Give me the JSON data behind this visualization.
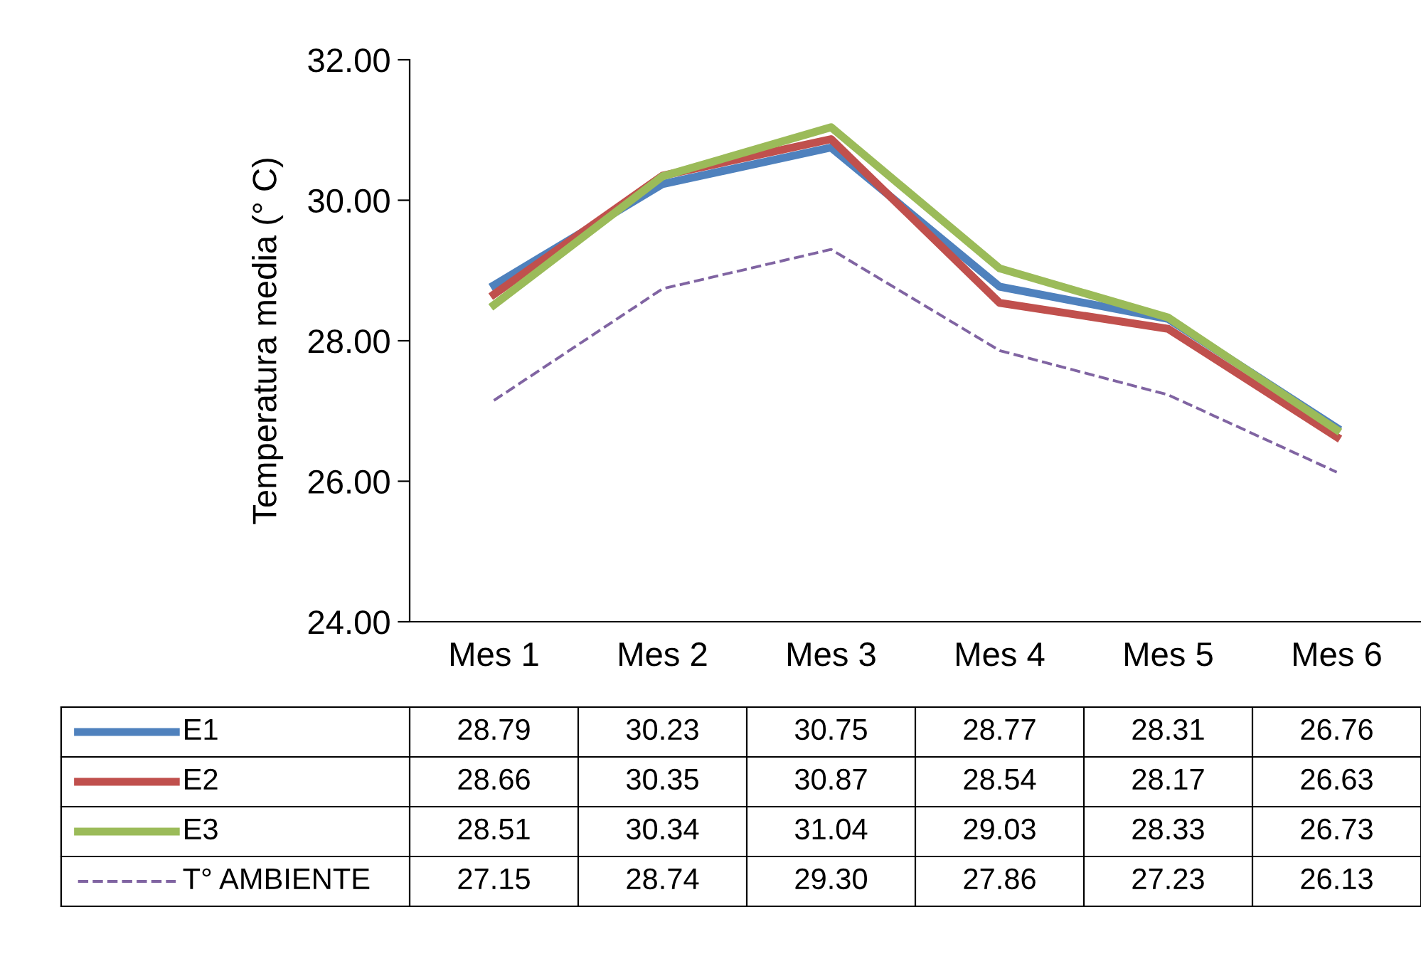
{
  "chart_data": {
    "type": "line",
    "ylabel": "Temperatura media (° C)",
    "categories": [
      "Mes 1",
      "Mes 2",
      "Mes 3",
      "Mes 4",
      "Mes 5",
      "Mes 6"
    ],
    "series": [
      {
        "name": "E1",
        "color": "#4f81bd",
        "values": [
          28.79,
          30.23,
          30.75,
          28.77,
          28.31,
          26.76
        ],
        "value_labels": [
          "28.79",
          "30.23",
          "30.75",
          "28.77",
          "28.31",
          "26.76"
        ]
      },
      {
        "name": "E2",
        "color": "#c0504d",
        "values": [
          28.66,
          30.35,
          30.87,
          28.54,
          28.17,
          26.63
        ],
        "value_labels": [
          "28.66",
          "30.35",
          "30.87",
          "28.54",
          "28.17",
          "26.63"
        ]
      },
      {
        "name": "E3",
        "color": "#9bbb59",
        "values": [
          28.51,
          30.34,
          31.04,
          29.03,
          28.33,
          26.73
        ],
        "value_labels": [
          "28.51",
          "30.34",
          "31.04",
          "29.03",
          "28.33",
          "26.73"
        ]
      },
      {
        "name": "T° AMBIENTE",
        "color": "#8064a2",
        "line_style": "dashed",
        "values": [
          27.15,
          28.74,
          29.3,
          27.86,
          27.23,
          26.13
        ],
        "value_labels": [
          "27.15",
          "28.74",
          "29.30",
          "27.86",
          "27.23",
          "26.13"
        ]
      }
    ],
    "ylim": [
      24,
      32
    ],
    "yticks": [
      {
        "value": 24,
        "label": "24.00"
      },
      {
        "value": 26,
        "label": "26.00"
      },
      {
        "value": 28,
        "label": "28.00"
      },
      {
        "value": 30,
        "label": "30.00"
      },
      {
        "value": 32,
        "label": "32.00"
      }
    ],
    "grid": false,
    "legend": "bottom",
    "marker": "none"
  }
}
